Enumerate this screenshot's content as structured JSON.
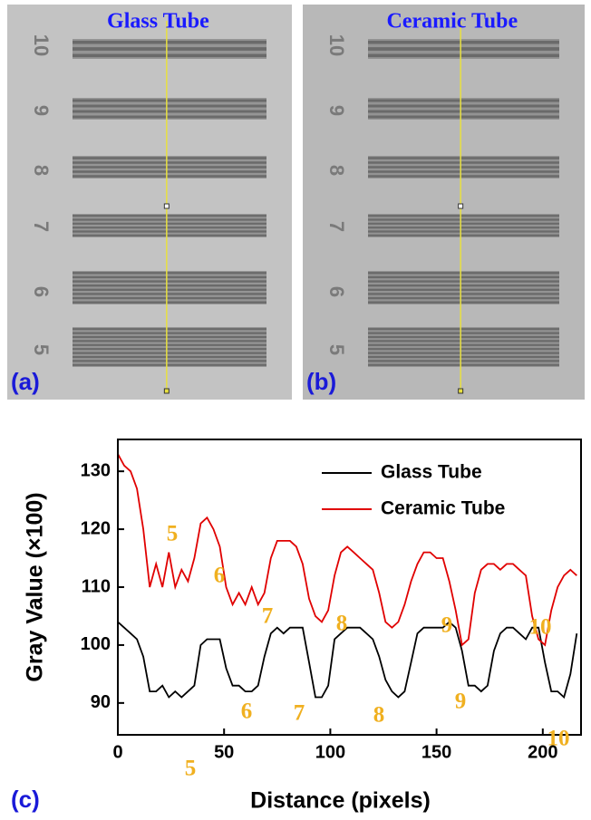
{
  "panels": [
    {
      "label": "(a)",
      "title": "Glass Tube",
      "group_labels": [
        "10",
        "9",
        "8",
        "7",
        "6",
        "5"
      ]
    },
    {
      "label": "(b)",
      "title": "Ceramic Tube",
      "group_labels": [
        "10",
        "9",
        "8",
        "7",
        "6",
        "5"
      ]
    }
  ],
  "chart_data": {
    "type": "line",
    "panel_label": "(c)",
    "x_label": "Distance (pixels)",
    "y_label": "Gray Value (×100)",
    "xlim": [
      0,
      218
    ],
    "ylim": [
      84.5,
      135.5
    ],
    "xticks": [
      0,
      50,
      100,
      150,
      200
    ],
    "yticks": [
      90,
      100,
      110,
      120,
      130
    ],
    "legend": "upper right",
    "x": [
      0,
      3,
      6,
      9,
      12,
      15,
      18,
      21,
      24,
      27,
      30,
      33,
      36,
      39,
      42,
      45,
      48,
      51,
      54,
      57,
      60,
      63,
      66,
      69,
      72,
      75,
      78,
      81,
      84,
      87,
      90,
      93,
      96,
      99,
      102,
      105,
      108,
      111,
      114,
      117,
      120,
      123,
      126,
      129,
      132,
      135,
      138,
      141,
      144,
      147,
      150,
      153,
      156,
      159,
      162,
      165,
      168,
      171,
      174,
      177,
      180,
      183,
      186,
      189,
      192,
      195,
      198,
      201,
      204,
      207,
      210,
      213,
      216
    ],
    "series": [
      {
        "name": "Glass Tube",
        "color": "#000000",
        "values": [
          104,
          103,
          102,
          101,
          98,
          92,
          92,
          93,
          91,
          92,
          91,
          92,
          93,
          100,
          101,
          101,
          101,
          96,
          93,
          93,
          92,
          92,
          93,
          98,
          102,
          103,
          102,
          103,
          103,
          103,
          97,
          91,
          91,
          93,
          101,
          102,
          103,
          103,
          103,
          102,
          101,
          98,
          94,
          92,
          91,
          92,
          97,
          102,
          103,
          103,
          103,
          103,
          104,
          103,
          99,
          93,
          93,
          92,
          93,
          99,
          102,
          103,
          103,
          102,
          101,
          103,
          103,
          97,
          92,
          92,
          91,
          95,
          102
        ]
      },
      {
        "name": "Ceramic Tube",
        "color": "#e00000",
        "values": [
          133,
          131,
          130,
          127,
          120,
          110,
          114,
          110,
          116,
          110,
          113,
          111,
          115,
          121,
          122,
          120,
          117,
          110,
          107,
          109,
          107,
          110,
          107,
          109,
          115,
          118,
          118,
          118,
          117,
          114,
          108,
          105,
          104,
          106,
          112,
          116,
          117,
          116,
          115,
          114,
          113,
          109,
          104,
          103,
          104,
          107,
          111,
          114,
          116,
          116,
          115,
          115,
          111,
          106,
          100,
          101,
          109,
          113,
          114,
          114,
          113,
          114,
          114,
          113,
          112,
          105,
          101,
          100,
          106,
          110,
          112,
          113,
          112
        ]
      }
    ],
    "annotations": {
      "upper": [
        "5",
        "6",
        "7",
        "8",
        "9",
        "10"
      ],
      "lower": [
        "5",
        "6",
        "7",
        "8",
        "9",
        "10"
      ]
    }
  }
}
